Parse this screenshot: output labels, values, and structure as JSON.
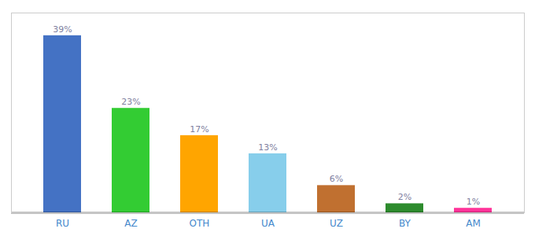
{
  "chart_data": {
    "type": "bar",
    "categories": [
      "RU",
      "AZ",
      "OTH",
      "UA",
      "UZ",
      "BY",
      "AM"
    ],
    "values": [
      39,
      23,
      17,
      13,
      6,
      2,
      1
    ],
    "value_labels": [
      "39%",
      "23%",
      "17%",
      "13%",
      "6%",
      "2%",
      "1%"
    ],
    "colors": [
      "#4472c4",
      "#33cc33",
      "#ffa500",
      "#87ceeb",
      "#c07030",
      "#2d8b2d",
      "#ff3399"
    ],
    "ylim": [
      0,
      44
    ],
    "data_labels": true,
    "tick_labels": "x",
    "grid": false
  }
}
